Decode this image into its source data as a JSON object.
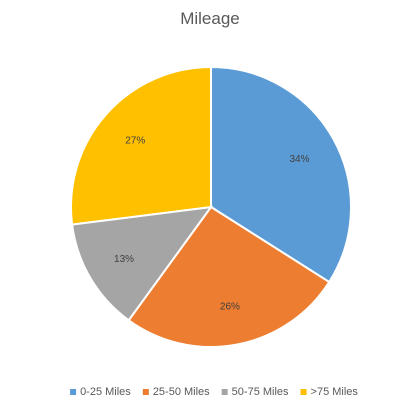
{
  "chart_data": {
    "type": "pie",
    "title": "Mileage",
    "categories": [
      "0-25 Miles",
      "25-50 Miles",
      "50-75 Miles",
      ">75 Miles"
    ],
    "values": [
      34,
      26,
      13,
      27
    ],
    "labels": [
      "34%",
      "26%",
      "13%",
      "27%"
    ],
    "colors": [
      "#5B9BD5",
      "#ED7D31",
      "#A5A5A5",
      "#FFC000"
    ],
    "start_angle_deg": 0,
    "direction": "clockwise",
    "legend_position": "bottom"
  }
}
